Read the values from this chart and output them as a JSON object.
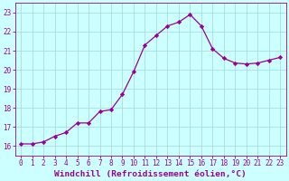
{
  "x": [
    0,
    1,
    2,
    3,
    4,
    5,
    6,
    7,
    8,
    9,
    10,
    11,
    12,
    13,
    14,
    15,
    16,
    17,
    18,
    19,
    20,
    21,
    22,
    23
  ],
  "y": [
    16.1,
    16.1,
    16.2,
    16.5,
    16.7,
    17.2,
    17.2,
    17.8,
    17.9,
    18.7,
    19.9,
    21.3,
    21.8,
    22.3,
    22.5,
    22.9,
    22.3,
    21.1,
    20.6,
    20.35,
    20.3,
    20.35,
    20.5,
    20.65
  ],
  "line_color": "#990099",
  "marker": "D",
  "marker_size": 2.2,
  "bg_color": "#ccffff",
  "grid_color": "#aadddd",
  "xlabel": "Windchill (Refroidissement éolien,°C)",
  "xlabel_color": "#990099",
  "tick_color": "#990099",
  "ylim": [
    15.5,
    23.5
  ],
  "xlim": [
    -0.5,
    23.5
  ],
  "yticks": [
    16,
    17,
    18,
    19,
    20,
    21,
    22,
    23
  ],
  "xticks": [
    0,
    1,
    2,
    3,
    4,
    5,
    6,
    7,
    8,
    9,
    10,
    11,
    12,
    13,
    14,
    15,
    16,
    17,
    18,
    19,
    20,
    21,
    22,
    23
  ],
  "xtick_labels": [
    "0",
    "1",
    "2",
    "3",
    "4",
    "5",
    "6",
    "7",
    "8",
    "9",
    "10",
    "11",
    "12",
    "13",
    "14",
    "15",
    "16",
    "17",
    "18",
    "19",
    "20",
    "21",
    "22",
    "23"
  ],
  "ytick_labels": [
    "16",
    "17",
    "18",
    "19",
    "20",
    "21",
    "22",
    "23"
  ],
  "tick_fontsize": 5.5,
  "xlabel_fontsize": 6.8,
  "linewidth": 0.9
}
